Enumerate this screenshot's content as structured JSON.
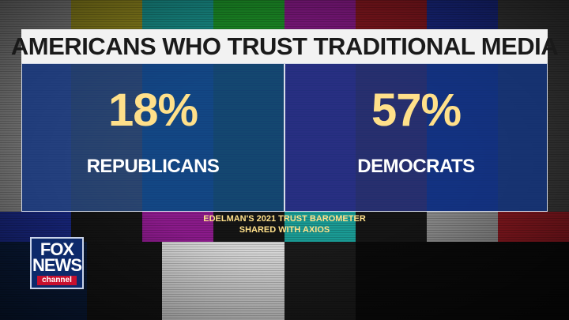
{
  "graphic": {
    "title": "AMERICANS WHO TRUST TRADITIONAL MEDIA",
    "stats": [
      {
        "value": "18%",
        "label": "REPUBLICANS"
      },
      {
        "value": "57%",
        "label": "DEMOCRATS"
      }
    ],
    "source_line1": "EDELMAN'S 2021 TRUST BAROMETER",
    "source_line2": "SHARED WITH AXIOS"
  },
  "logo": {
    "line1": "FOX",
    "line2": "NEWS",
    "sub": "channel"
  },
  "colors": {
    "title_bg": "#f2f2f2",
    "panel_bg": "#123480",
    "value_text": "#ffe08a",
    "label_text": "#ffffff",
    "source_text": "#ffe08a"
  }
}
